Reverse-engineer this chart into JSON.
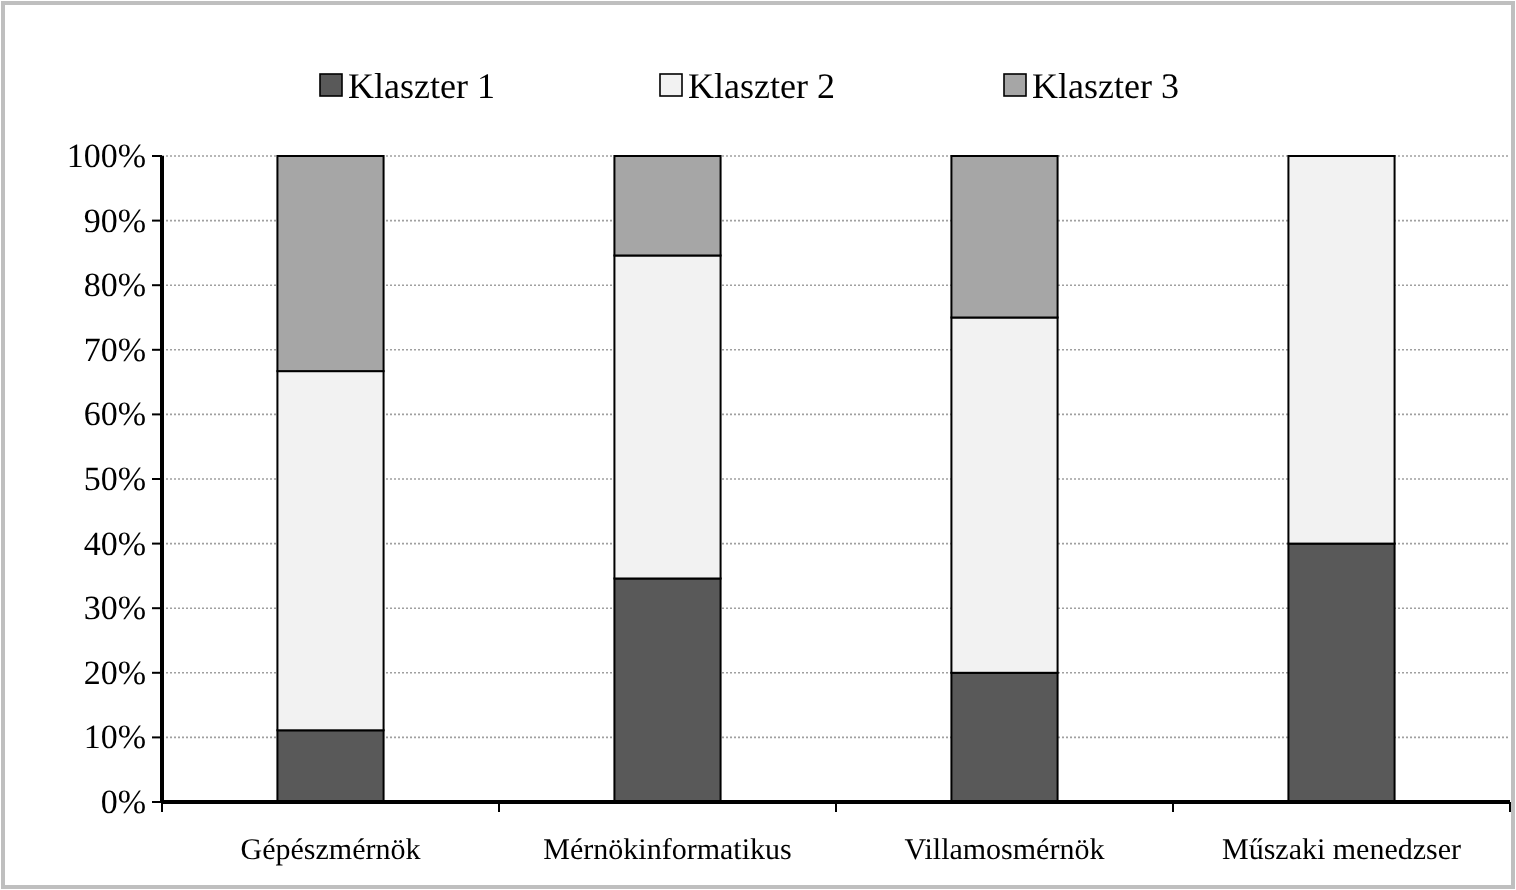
{
  "chart_data": {
    "type": "bar",
    "stacked": true,
    "categories": [
      "Gépészmérnök",
      "Mérnökinformatikus",
      "Villamosmérnök",
      "Műszaki menedzser"
    ],
    "series": [
      {
        "name": "Klaszter 1",
        "color": "#595959",
        "values": [
          11.1,
          34.6,
          20,
          40
        ]
      },
      {
        "name": "Klaszter 2",
        "color": "#f2f2f2",
        "values": [
          55.6,
          50,
          55,
          60
        ]
      },
      {
        "name": "Klaszter 3",
        "color": "#a6a6a6",
        "values": [
          33.3,
          15.4,
          25,
          0
        ]
      }
    ],
    "ylim": [
      0,
      100
    ],
    "yticks": [
      {
        "value": 0,
        "label": "0%"
      },
      {
        "value": 10,
        "label": "10%"
      },
      {
        "value": 20,
        "label": "20%"
      },
      {
        "value": 30,
        "label": "30%"
      },
      {
        "value": 40,
        "label": "40%"
      },
      {
        "value": 50,
        "label": "50%"
      },
      {
        "value": 60,
        "label": "60%"
      },
      {
        "value": 70,
        "label": "70%"
      },
      {
        "value": 80,
        "label": "80%"
      },
      {
        "value": 90,
        "label": "90%"
      },
      {
        "value": 100,
        "label": "100%"
      }
    ],
    "grid": "y",
    "legend": "top"
  }
}
